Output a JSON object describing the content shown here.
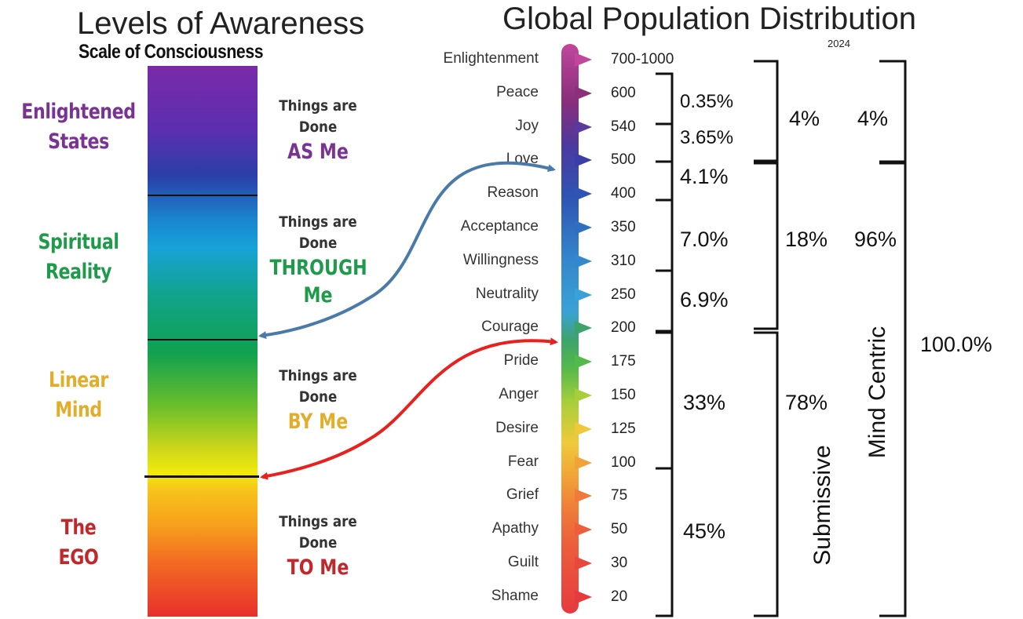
{
  "left": {
    "title": "Levels of Awareness",
    "subtitle": "Scale of Consciousness",
    "zones": [
      {
        "label_line1": "Enlightened",
        "label_line2": "States",
        "color": "#7b3393",
        "things_line1": "Things are",
        "things_line2": "Done",
        "me_line1": "AS Me",
        "me_line2": "",
        "me_color": "#7b3393"
      },
      {
        "label_line1": "Spiritual",
        "label_line2": "Reality",
        "color": "#1e9a4a",
        "things_line1": "Things are",
        "things_line2": "Done",
        "me_line1": "THROUGH",
        "me_line2": "Me",
        "me_color": "#1e9a4a"
      },
      {
        "label_line1": "Linear",
        "label_line2": "Mind",
        "color": "#e2ad2a",
        "things_line1": "Things are",
        "things_line2": "Done",
        "me_line1": "BY Me",
        "me_line2": "",
        "me_color": "#e2ad2a"
      },
      {
        "label_line1": "The",
        "label_line2": "EGO",
        "color": "#c0282b",
        "things_line1": "Things are",
        "things_line2": "Done",
        "me_line1": "TO Me",
        "me_line2": "",
        "me_color": "#c0282b"
      }
    ]
  },
  "right": {
    "title": "Global Population Distribution",
    "year": "2024",
    "levels": [
      {
        "name": "Enlightenment",
        "value": "700-1000",
        "color": "#c0479b"
      },
      {
        "name": "Peace",
        "value": "600",
        "color": "#8a2f7a"
      },
      {
        "name": "Joy",
        "value": "540",
        "color": "#5b3a9e"
      },
      {
        "name": "Love",
        "value": "500",
        "color": "#3a3ea8"
      },
      {
        "name": "Reason",
        "value": "400",
        "color": "#2f55b4"
      },
      {
        "name": "Acceptance",
        "value": "350",
        "color": "#2f6fc0"
      },
      {
        "name": "Willingness",
        "value": "310",
        "color": "#3487cc"
      },
      {
        "name": "Neutrality",
        "value": "250",
        "color": "#3aa1d6"
      },
      {
        "name": "Courage",
        "value": "200",
        "color": "#3ea36b"
      },
      {
        "name": "Pride",
        "value": "175",
        "color": "#55b84a"
      },
      {
        "name": "Anger",
        "value": "150",
        "color": "#a8cf3b"
      },
      {
        "name": "Desire",
        "value": "125",
        "color": "#f0c93a"
      },
      {
        "name": "Fear",
        "value": "100",
        "color": "#f1a338"
      },
      {
        "name": "Grief",
        "value": "75",
        "color": "#ef7a3a"
      },
      {
        "name": "Apathy",
        "value": "50",
        "color": "#ec5e3c"
      },
      {
        "name": "Guilt",
        "value": "30",
        "color": "#e8473e"
      },
      {
        "name": "Shame",
        "value": "20",
        "color": "#e63a3f"
      }
    ],
    "percentages": {
      "peace": "0.35%",
      "joy_love": "3.65%",
      "love_reason": "4.1%",
      "reason_willingness": "7.0%",
      "willingness_courage": "6.9%",
      "courage_fear": "33%",
      "fear_shame": "45%",
      "group_top": "4%",
      "group_mid": "18%",
      "group_low": "78%",
      "group_top_2": "4%",
      "group_mind": "96%",
      "total": "100.0%"
    },
    "labels": {
      "submissive": "Submissive",
      "mind_centric": "Mind Centric"
    }
  }
}
